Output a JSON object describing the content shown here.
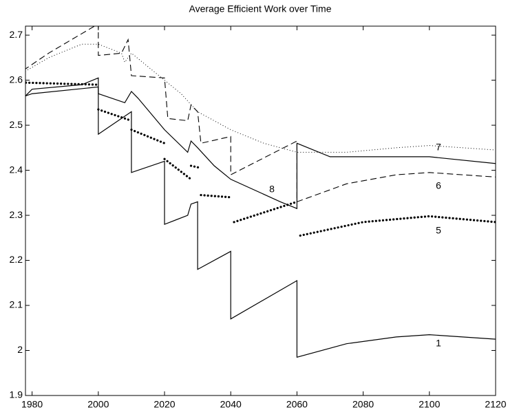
{
  "chart_data": {
    "type": "line",
    "title": "Average Efficient Work over Time",
    "xlim": [
      1978,
      2120
    ],
    "ylim": [
      1.9,
      2.72
    ],
    "xticks": [
      1980,
      2000,
      2020,
      2040,
      2060,
      2080,
      2100,
      2120
    ],
    "yticks": [
      1.9,
      2,
      2.1,
      2.2,
      2.3,
      2.4,
      2.5,
      2.6,
      2.7
    ],
    "series": [
      {
        "name": "1",
        "color": "#000000",
        "style": "solid",
        "x": [
          1976,
          1980,
          1995,
          2000,
          2000,
          2010,
          2010,
          2020,
          2020,
          2027,
          2028,
          2030,
          2030,
          2040,
          2040,
          2060,
          2060,
          2075,
          2090,
          2100,
          2120
        ],
        "values": [
          2.55,
          2.58,
          2.59,
          2.605,
          2.48,
          2.53,
          2.395,
          2.42,
          2.28,
          2.3,
          2.325,
          2.33,
          2.18,
          2.22,
          2.07,
          2.155,
          1.985,
          2.015,
          2.03,
          2.035,
          2.025
        ]
      },
      {
        "name": "5",
        "color": "#000000",
        "style": "dots",
        "x": [
          1976,
          1990,
          2000,
          2000,
          2000,
          2010,
          2010,
          2010,
          2020,
          2020,
          2020,
          2028,
          2028,
          2028,
          2031,
          2031,
          2031,
          2040,
          2040,
          2041,
          2060,
          2060,
          2061,
          2080,
          2100,
          2120
        ],
        "values": [
          2.595,
          2.592,
          2.59,
          null,
          2.535,
          2.51,
          null,
          2.49,
          2.46,
          null,
          2.425,
          2.38,
          null,
          2.41,
          2.405,
          null,
          2.345,
          2.34,
          null,
          2.285,
          2.33,
          null,
          2.255,
          2.285,
          2.298,
          2.285
        ]
      },
      {
        "name": "6",
        "color": "#000000",
        "style": "dashed",
        "x": [
          1976,
          1977,
          1985,
          2000,
          2000,
          2007,
          2009,
          2010,
          2020,
          2021,
          2027,
          2028,
          2030,
          2031,
          2040,
          2040,
          2060,
          2060,
          2075,
          2090,
          2100,
          2120
        ],
        "values": [
          2.56,
          2.62,
          2.66,
          2.725,
          2.655,
          2.66,
          2.69,
          2.61,
          2.605,
          2.515,
          2.51,
          2.545,
          2.53,
          2.46,
          2.475,
          2.39,
          2.465,
          2.33,
          2.37,
          2.39,
          2.395,
          2.385
        ]
      },
      {
        "name": "7",
        "color": "#000000",
        "style": "dotted",
        "x": [
          1976,
          1978,
          1985,
          1995,
          2000,
          2007,
          2008,
          2010,
          2015,
          2020,
          2025,
          2030,
          2040,
          2050,
          2060,
          2075,
          2090,
          2100,
          2120
        ],
        "values": [
          2.56,
          2.62,
          2.65,
          2.68,
          2.68,
          2.66,
          2.64,
          2.66,
          2.63,
          2.6,
          2.57,
          2.53,
          2.49,
          2.46,
          2.44,
          2.44,
          2.45,
          2.455,
          2.445
        ]
      },
      {
        "name": "8",
        "color": "#000000",
        "style": "solid",
        "x": [
          1976,
          1980,
          2000,
          2000,
          2008,
          2010,
          2012,
          2020,
          2027,
          2028,
          2030,
          2035,
          2040,
          2055,
          2060,
          2060,
          2070,
          2100,
          2120
        ],
        "values": [
          2.56,
          2.57,
          2.585,
          2.57,
          2.55,
          2.575,
          2.56,
          2.49,
          2.44,
          2.465,
          2.45,
          2.41,
          2.38,
          2.33,
          2.315,
          2.46,
          2.43,
          2.43,
          2.415
        ]
      }
    ]
  }
}
